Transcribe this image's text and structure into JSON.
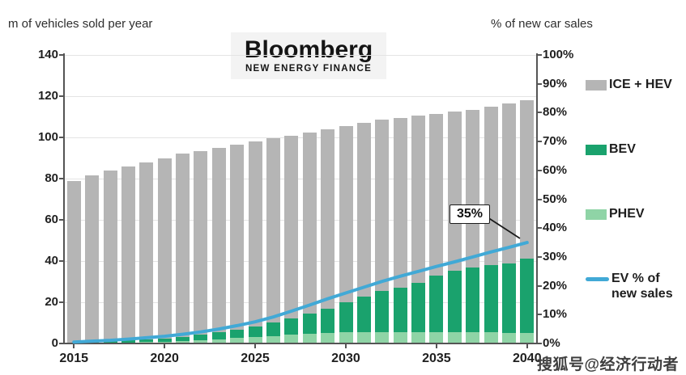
{
  "header": {
    "left_axis_title": "m of vehicles sold per year",
    "right_axis_title": "% of new car sales",
    "logo": {
      "line1": "Bloomberg",
      "line2": "NEW ENERGY FINANCE"
    }
  },
  "watermark": {
    "text": "搜狐号@经济行动者"
  },
  "legend": {
    "items": [
      {
        "label": "ICE + HEV",
        "swatch": "box",
        "color": "#b5b5b5"
      },
      {
        "label": "BEV",
        "swatch": "box",
        "color": "#1aa26d"
      },
      {
        "label": "PHEV",
        "swatch": "box",
        "color": "#8fd4a6"
      },
      {
        "label": "EV % of new sales",
        "swatch": "line",
        "color": "#41a9d6"
      }
    ]
  },
  "colors": {
    "ice_hev": "#b5b5b5",
    "bev": "#1aa26d",
    "phev": "#8fd4a6",
    "ev_line": "#41a9d6",
    "gridline": "#e4e4e4",
    "axis": "#555555"
  },
  "chart_data": [
    {
      "type": "bar",
      "stacked": true,
      "axis": "left",
      "title": "",
      "xlabel": "",
      "ylabel": "m of vehicles sold per year",
      "ylim": [
        0,
        140
      ],
      "ytick_labels": [
        "0",
        "20",
        "40",
        "60",
        "80",
        "100",
        "120",
        "140"
      ],
      "xtick_labels": [
        "2015",
        "2020",
        "2025",
        "2030",
        "2035",
        "2040"
      ],
      "grid": true,
      "categories": [
        2015,
        2016,
        2017,
        2018,
        2019,
        2020,
        2021,
        2022,
        2023,
        2024,
        2025,
        2026,
        2027,
        2028,
        2029,
        2030,
        2031,
        2032,
        2033,
        2034,
        2035,
        2036,
        2037,
        2038,
        2039,
        2040
      ],
      "series": [
        {
          "name": "PHEV",
          "color": "#8fd4a6",
          "values": [
            0.2,
            0.3,
            0.4,
            0.6,
            0.8,
            1.0,
            1.3,
            1.7,
            2.1,
            2.6,
            3.1,
            3.7,
            4.2,
            4.7,
            5.0,
            5.5,
            5.6,
            5.6,
            5.6,
            5.6,
            5.6,
            5.5,
            5.5,
            5.4,
            5.2,
            5.0
          ]
        },
        {
          "name": "BEV",
          "color": "#1aa26d",
          "values": [
            0.3,
            0.5,
            0.7,
            0.9,
            1.2,
            1.5,
            2.0,
            2.6,
            3.4,
            4.2,
            5.2,
            6.5,
            8.0,
            10.0,
            12.0,
            14.5,
            17.0,
            20.0,
            21.5,
            24.0,
            27.5,
            30.0,
            31.5,
            32.5,
            33.8,
            36.0
          ]
        },
        {
          "name": "ICE + HEV",
          "color": "#b5b5b5",
          "values": [
            78.5,
            80.7,
            82.9,
            84.5,
            86.0,
            87.5,
            88.7,
            89.2,
            89.5,
            89.7,
            89.7,
            89.3,
            88.8,
            87.8,
            87.0,
            85.5,
            84.4,
            82.9,
            82.4,
            80.9,
            78.4,
            77.0,
            76.5,
            77.1,
            77.5,
            77.0
          ]
        }
      ]
    },
    {
      "type": "line",
      "axis": "right",
      "name": "EV % of new sales",
      "color": "#41a9d6",
      "ylabel": "% of new car sales",
      "ylim": [
        0,
        100
      ],
      "ytick_labels": [
        "0%",
        "10%",
        "20%",
        "30%",
        "40%",
        "50%",
        "60%",
        "70%",
        "80%",
        "90%",
        "100%"
      ],
      "x": [
        2015,
        2016,
        2017,
        2018,
        2019,
        2020,
        2021,
        2022,
        2023,
        2024,
        2025,
        2026,
        2027,
        2028,
        2029,
        2030,
        2031,
        2032,
        2033,
        2034,
        2035,
        2036,
        2037,
        2038,
        2039,
        2040
      ],
      "values": [
        0.5,
        0.8,
        1.1,
        1.5,
        2.0,
        2.5,
        3.2,
        4.0,
        5.0,
        6.2,
        7.5,
        9.2,
        11.2,
        13.3,
        15.5,
        17.5,
        19.5,
        21.5,
        23.3,
        25.0,
        26.7,
        28.3,
        30.0,
        31.7,
        33.3,
        35.0
      ],
      "annotation": {
        "text": "35%",
        "x": 2040,
        "value": 35
      }
    }
  ]
}
